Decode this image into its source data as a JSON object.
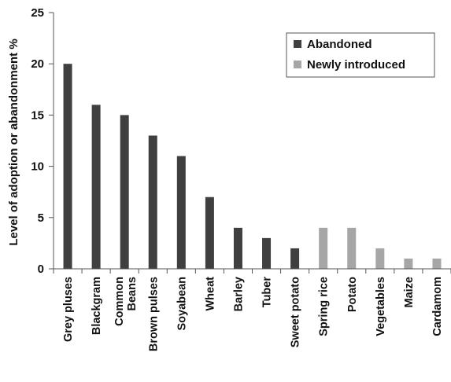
{
  "chart_data": {
    "type": "bar",
    "title": "",
    "xlabel": "",
    "ylabel": "Level of adoption or abandonment %",
    "ylim": [
      0,
      25
    ],
    "yticks": [
      0,
      5,
      10,
      15,
      20,
      25
    ],
    "grid": false,
    "legend_position": "top-right",
    "categories": [
      "Grey pluses",
      "Blackgram",
      "Common Beans",
      "Brown pulses",
      "Soyabean",
      "Wheat",
      "Barley",
      "Tuber",
      "Sweet potato",
      "Spring rice",
      "Potato",
      "Vegetables",
      "Maize",
      "Cardamom"
    ],
    "series": [
      {
        "name": "Abandoned",
        "color": "#3f3f3f",
        "values": [
          20,
          16,
          15,
          13,
          11,
          7,
          4,
          3,
          2,
          null,
          null,
          null,
          null,
          null
        ]
      },
      {
        "name": "Newly introduced",
        "color": "#a6a6a6",
        "values": [
          null,
          null,
          null,
          null,
          null,
          null,
          null,
          null,
          null,
          4,
          4,
          2,
          1,
          1
        ]
      }
    ]
  }
}
